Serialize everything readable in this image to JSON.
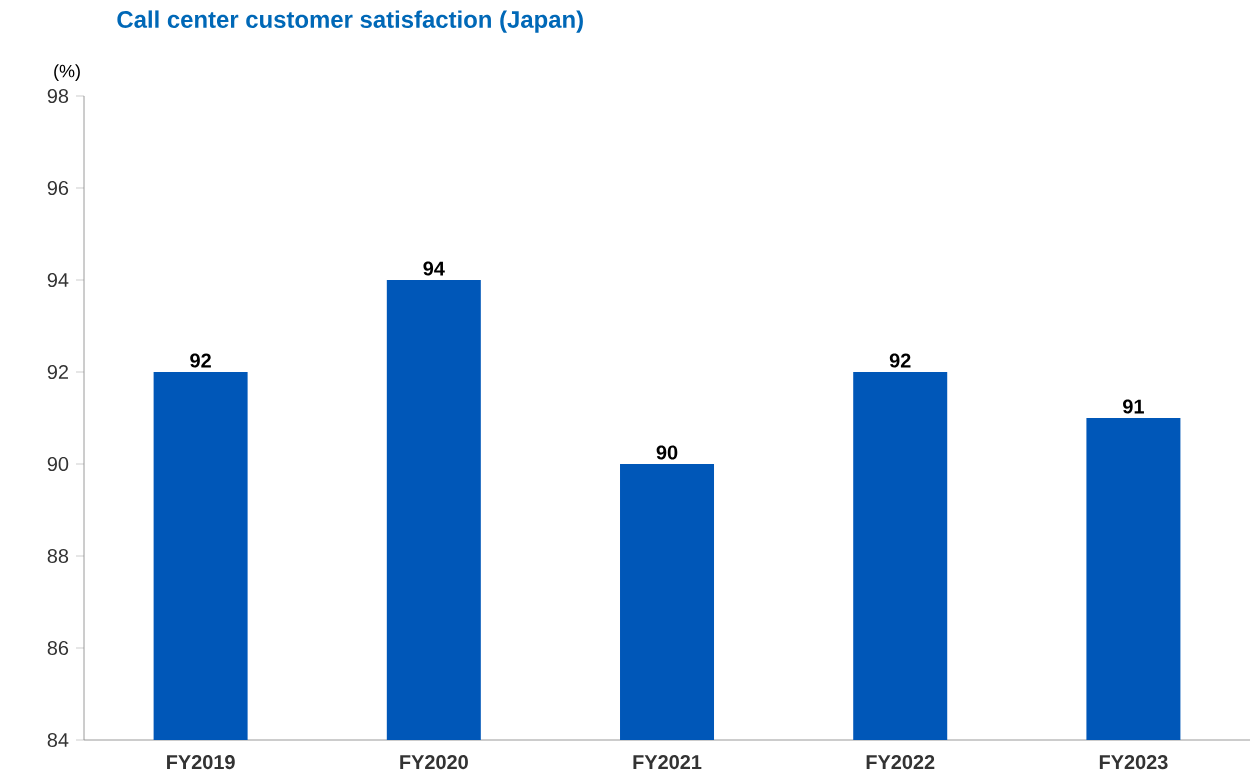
{
  "chart_data": {
    "type": "bar",
    "title": "Call center customer satisfaction (Japan)",
    "ylabel": "(%)",
    "categories": [
      "FY2019",
      "FY2020",
      "FY2021",
      "FY2022",
      "FY2023"
    ],
    "values": [
      92,
      94,
      90,
      92,
      91
    ],
    "color": "#0057b8",
    "ylim": [
      84,
      98
    ],
    "yticks": [
      84,
      86,
      88,
      90,
      92,
      94,
      96,
      98
    ],
    "grid": false,
    "data_labels": true
  }
}
